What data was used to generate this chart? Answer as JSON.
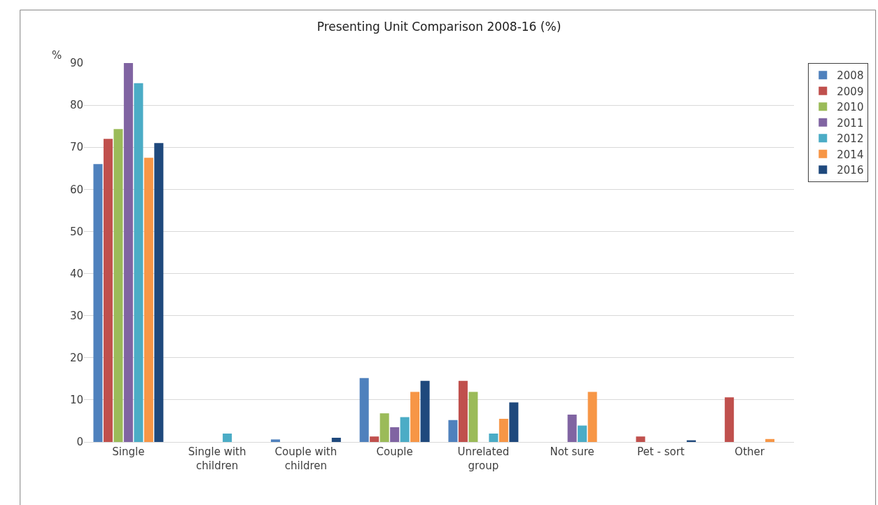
{
  "chart_data": {
    "type": "bar",
    "title": "Presenting Unit Comparison 2008-16 (%)",
    "ylabel": "%",
    "categories": [
      "Single",
      "Single with children",
      "Couple with children",
      "Couple",
      "Unrelated group",
      "Not sure",
      "Pet - sort",
      "Other"
    ],
    "series": [
      {
        "name": "2008",
        "color": "#4f81bd",
        "values": [
          66,
          0,
          0.6,
          15.2,
          5.2,
          0,
          0,
          0
        ]
      },
      {
        "name": "2009",
        "color": "#c0504d",
        "values": [
          72,
          0,
          0,
          1.3,
          14.5,
          0,
          1.3,
          10.6
        ]
      },
      {
        "name": "2010",
        "color": "#9bbb59",
        "values": [
          74.3,
          0,
          0,
          6.8,
          11.9,
          0,
          0,
          0
        ]
      },
      {
        "name": "2011",
        "color": "#8064a2",
        "values": [
          90,
          0,
          0,
          3.5,
          0,
          6.5,
          0,
          0
        ]
      },
      {
        "name": "2012",
        "color": "#4bacc6",
        "values": [
          85.2,
          2,
          0,
          5.9,
          2,
          3.9,
          0,
          0
        ]
      },
      {
        "name": "2014",
        "color": "#f79646",
        "values": [
          67.5,
          0,
          0,
          11.9,
          5.5,
          11.9,
          0,
          0.7
        ]
      },
      {
        "name": "2016",
        "color": "#1f497d",
        "values": [
          71,
          0,
          1,
          14.5,
          9.4,
          0,
          0.4,
          0
        ]
      }
    ],
    "ylim": [
      0,
      90
    ],
    "yticks": [
      0,
      10,
      20,
      30,
      40,
      50,
      60,
      70,
      80,
      90
    ],
    "grid": "y",
    "legend": "right"
  }
}
